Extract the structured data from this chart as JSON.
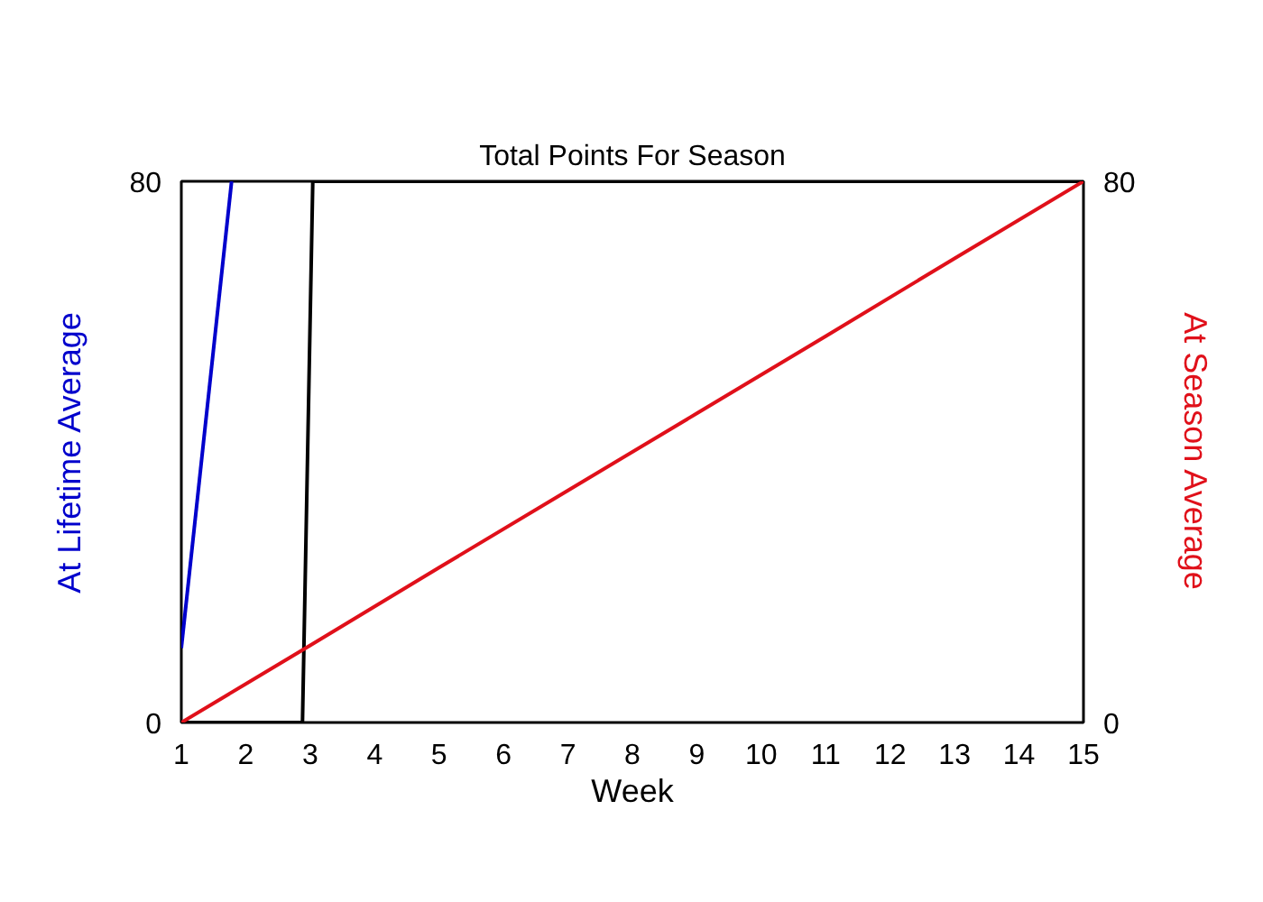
{
  "chart_data": {
    "type": "line",
    "title": "Total Points For Season",
    "xlabel": "Week",
    "ylabel": "At Lifetime Average",
    "y2label": "At Season Average",
    "xlim": [
      1,
      15
    ],
    "xticks": [
      1,
      2,
      3,
      4,
      5,
      6,
      7,
      8,
      9,
      10,
      11,
      12,
      13,
      14,
      15
    ],
    "ylim": [
      0,
      80
    ],
    "yticks": [
      0,
      80
    ],
    "y2lim": [
      0,
      80
    ],
    "y2ticks": [
      0,
      80
    ],
    "grid": false,
    "series": [
      {
        "color": "#0000cc",
        "x": [
          1,
          1.78
        ],
        "values": [
          11,
          80
        ]
      },
      {
        "color": "#000000",
        "x": [
          1,
          2.88,
          3.04,
          15
        ],
        "values": [
          0,
          0,
          80,
          80
        ]
      },
      {
        "color": "#e0101a",
        "axis": "y2",
        "x": [
          1,
          3,
          5,
          7,
          9,
          11,
          13,
          15
        ],
        "values": [
          0,
          11.4,
          22.9,
          34.3,
          45.7,
          57.1,
          68.6,
          80
        ]
      }
    ]
  }
}
